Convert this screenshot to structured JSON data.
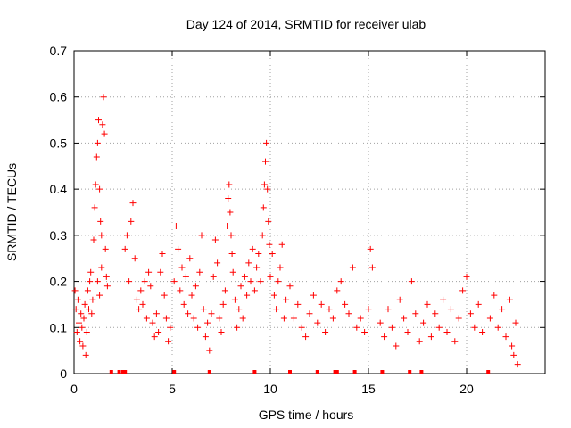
{
  "chart_data": {
    "type": "scatter",
    "title": "Day 124 of 2014, SRMTID for receiver ulab",
    "xlabel": "GPS time / hours",
    "ylabel": "SRMTID / TECUs",
    "xlim": [
      0,
      24
    ],
    "ylim": [
      0,
      0.7
    ],
    "xticks": [
      0,
      5,
      10,
      15,
      20
    ],
    "xtick_labels": [
      "0",
      "5",
      "10",
      "15",
      "20"
    ],
    "yticks": [
      0,
      0.1,
      0.2,
      0.3,
      0.4,
      0.5,
      0.6,
      0.7
    ],
    "ytick_labels": [
      "0",
      "0.1",
      "0.2",
      "0.3",
      "0.4",
      "0.5",
      "0.6",
      "0.7"
    ],
    "grid": true,
    "marker": "+",
    "color": "#ff0000",
    "series": [
      {
        "name": "SRMTID",
        "points": [
          [
            0.05,
            0.18
          ],
          [
            0.1,
            0.14
          ],
          [
            0.15,
            0.09
          ],
          [
            0.2,
            0.16
          ],
          [
            0.25,
            0.11
          ],
          [
            0.3,
            0.07
          ],
          [
            0.35,
            0.13
          ],
          [
            0.4,
            0.1
          ],
          [
            0.45,
            0.06
          ],
          [
            0.5,
            0.12
          ],
          [
            0.55,
            0.15
          ],
          [
            0.6,
            0.04
          ],
          [
            0.65,
            0.09
          ],
          [
            0.7,
            0.18
          ],
          [
            0.75,
            0.14
          ],
          [
            0.8,
            0.2
          ],
          [
            0.85,
            0.22
          ],
          [
            0.9,
            0.13
          ],
          [
            0.95,
            0.16
          ],
          [
            1.0,
            0.29
          ],
          [
            1.05,
            0.36
          ],
          [
            1.1,
            0.41
          ],
          [
            1.15,
            0.47
          ],
          [
            1.2,
            0.5
          ],
          [
            1.25,
            0.55
          ],
          [
            1.3,
            0.4
          ],
          [
            1.35,
            0.33
          ],
          [
            1.4,
            0.3
          ],
          [
            1.45,
            0.54
          ],
          [
            1.5,
            0.6
          ],
          [
            1.55,
            0.52
          ],
          [
            1.6,
            0.27
          ],
          [
            1.65,
            0.21
          ],
          [
            1.7,
            0.19
          ],
          [
            1.2,
            0.2
          ],
          [
            1.3,
            0.17
          ],
          [
            1.4,
            0.23
          ],
          [
            2.6,
            0.27
          ],
          [
            2.7,
            0.3
          ],
          [
            2.8,
            0.2
          ],
          [
            2.9,
            0.33
          ],
          [
            3.0,
            0.37
          ],
          [
            3.1,
            0.25
          ],
          [
            3.2,
            0.16
          ],
          [
            3.3,
            0.14
          ],
          [
            3.4,
            0.18
          ],
          [
            3.5,
            0.15
          ],
          [
            3.6,
            0.2
          ],
          [
            3.7,
            0.12
          ],
          [
            3.8,
            0.22
          ],
          [
            3.9,
            0.19
          ],
          [
            4.0,
            0.11
          ],
          [
            4.1,
            0.08
          ],
          [
            4.2,
            0.13
          ],
          [
            4.3,
            0.09
          ],
          [
            4.4,
            0.22
          ],
          [
            4.5,
            0.26
          ],
          [
            4.6,
            0.17
          ],
          [
            4.7,
            0.12
          ],
          [
            4.8,
            0.07
          ],
          [
            4.9,
            0.1
          ],
          [
            5.1,
            0.2
          ],
          [
            5.2,
            0.32
          ],
          [
            5.3,
            0.27
          ],
          [
            5.4,
            0.18
          ],
          [
            5.5,
            0.23
          ],
          [
            5.6,
            0.15
          ],
          [
            5.7,
            0.21
          ],
          [
            5.8,
            0.13
          ],
          [
            5.9,
            0.25
          ],
          [
            6.0,
            0.17
          ],
          [
            6.1,
            0.12
          ],
          [
            6.2,
            0.19
          ],
          [
            6.3,
            0.1
          ],
          [
            6.4,
            0.22
          ],
          [
            6.5,
            0.3
          ],
          [
            6.6,
            0.14
          ],
          [
            6.7,
            0.08
          ],
          [
            6.8,
            0.11
          ],
          [
            6.9,
            0.05
          ],
          [
            7.0,
            0.13
          ],
          [
            7.1,
            0.21
          ],
          [
            7.2,
            0.29
          ],
          [
            7.3,
            0.24
          ],
          [
            7.4,
            0.12
          ],
          [
            7.5,
            0.09
          ],
          [
            7.6,
            0.15
          ],
          [
            7.7,
            0.18
          ],
          [
            7.8,
            0.32
          ],
          [
            7.85,
            0.38
          ],
          [
            7.9,
            0.41
          ],
          [
            7.95,
            0.35
          ],
          [
            8.0,
            0.3
          ],
          [
            8.05,
            0.26
          ],
          [
            8.1,
            0.22
          ],
          [
            8.2,
            0.16
          ],
          [
            8.3,
            0.1
          ],
          [
            8.4,
            0.14
          ],
          [
            8.5,
            0.19
          ],
          [
            8.6,
            0.12
          ],
          [
            8.7,
            0.21
          ],
          [
            8.8,
            0.17
          ],
          [
            8.9,
            0.24
          ],
          [
            9.0,
            0.2
          ],
          [
            9.1,
            0.27
          ],
          [
            9.2,
            0.18
          ],
          [
            9.3,
            0.23
          ],
          [
            9.4,
            0.26
          ],
          [
            9.5,
            0.2
          ],
          [
            9.6,
            0.3
          ],
          [
            9.65,
            0.36
          ],
          [
            9.7,
            0.41
          ],
          [
            9.75,
            0.46
          ],
          [
            9.8,
            0.5
          ],
          [
            9.85,
            0.4
          ],
          [
            9.9,
            0.33
          ],
          [
            9.95,
            0.28
          ],
          [
            10.0,
            0.21
          ],
          [
            10.1,
            0.26
          ],
          [
            10.2,
            0.17
          ],
          [
            10.3,
            0.14
          ],
          [
            10.4,
            0.2
          ],
          [
            10.5,
            0.23
          ],
          [
            10.6,
            0.28
          ],
          [
            10.7,
            0.12
          ],
          [
            10.8,
            0.16
          ],
          [
            11.0,
            0.19
          ],
          [
            11.2,
            0.12
          ],
          [
            11.4,
            0.15
          ],
          [
            11.6,
            0.1
          ],
          [
            11.8,
            0.08
          ],
          [
            12.0,
            0.13
          ],
          [
            12.2,
            0.17
          ],
          [
            12.4,
            0.11
          ],
          [
            12.6,
            0.15
          ],
          [
            12.8,
            0.09
          ],
          [
            13.0,
            0.14
          ],
          [
            13.2,
            0.12
          ],
          [
            13.4,
            0.18
          ],
          [
            13.6,
            0.2
          ],
          [
            13.8,
            0.15
          ],
          [
            14.0,
            0.13
          ],
          [
            14.2,
            0.23
          ],
          [
            14.4,
            0.1
          ],
          [
            14.6,
            0.12
          ],
          [
            14.8,
            0.09
          ],
          [
            15.0,
            0.14
          ],
          [
            15.1,
            0.27
          ],
          [
            15.2,
            0.23
          ],
          [
            15.6,
            0.11
          ],
          [
            15.8,
            0.08
          ],
          [
            16.0,
            0.14
          ],
          [
            16.2,
            0.1
          ],
          [
            16.4,
            0.06
          ],
          [
            16.6,
            0.16
          ],
          [
            16.8,
            0.12
          ],
          [
            17.0,
            0.09
          ],
          [
            17.2,
            0.2
          ],
          [
            17.4,
            0.13
          ],
          [
            17.6,
            0.07
          ],
          [
            17.8,
            0.11
          ],
          [
            18.0,
            0.15
          ],
          [
            18.2,
            0.08
          ],
          [
            18.4,
            0.13
          ],
          [
            18.6,
            0.1
          ],
          [
            18.8,
            0.16
          ],
          [
            19.0,
            0.09
          ],
          [
            19.2,
            0.14
          ],
          [
            19.4,
            0.07
          ],
          [
            19.6,
            0.12
          ],
          [
            19.8,
            0.18
          ],
          [
            20.0,
            0.21
          ],
          [
            20.2,
            0.13
          ],
          [
            20.4,
            0.1
          ],
          [
            20.6,
            0.15
          ],
          [
            20.8,
            0.09
          ],
          [
            21.2,
            0.12
          ],
          [
            21.4,
            0.17
          ],
          [
            21.6,
            0.1
          ],
          [
            21.8,
            0.14
          ],
          [
            22.0,
            0.08
          ],
          [
            22.2,
            0.16
          ],
          [
            22.3,
            0.06
          ],
          [
            22.4,
            0.04
          ],
          [
            22.5,
            0.11
          ],
          [
            22.6,
            0.02
          ]
        ]
      }
    ],
    "gap_markers_x": [
      1.9,
      2.3,
      2.5,
      2.6,
      5.1,
      6.9,
      9.2,
      11.0,
      12.4,
      13.3,
      13.4,
      14.3,
      15.7,
      17.1,
      17.7,
      21.1
    ]
  }
}
